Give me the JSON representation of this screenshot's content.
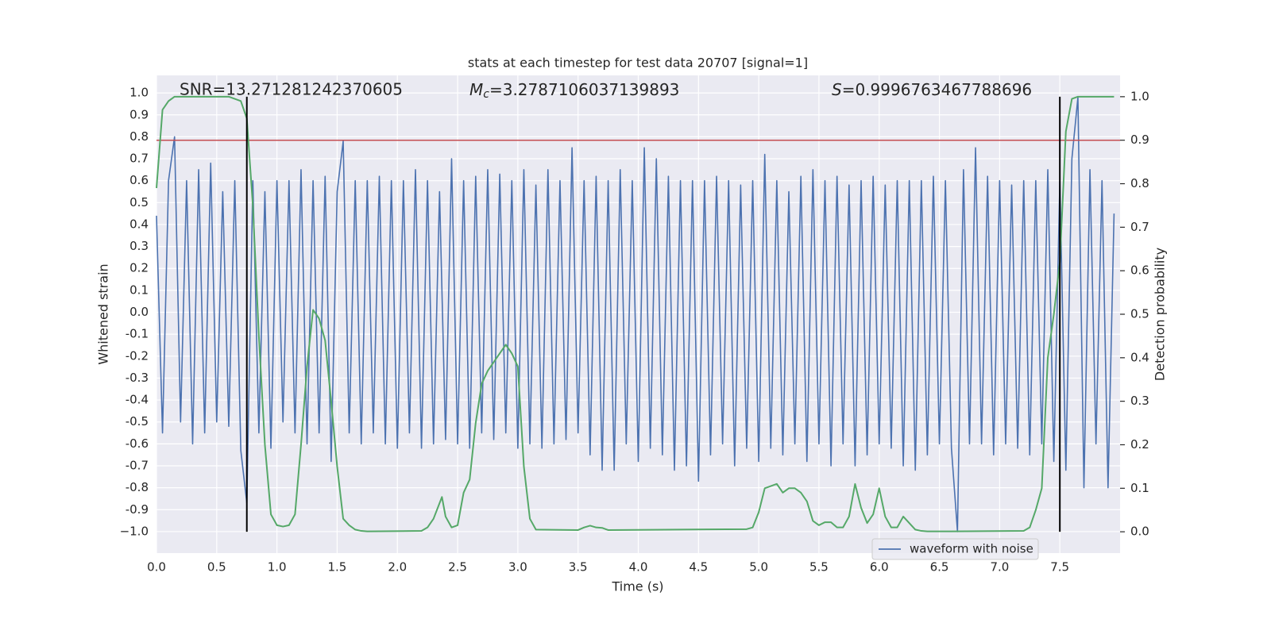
{
  "chart_data": {
    "type": "line",
    "title": "stats at each timestep for test data 20707 [signal=1]",
    "xlabel": "Time (s)",
    "ylabel": "Whitened strain",
    "y2label": "Detection probability",
    "annotations": [
      {
        "text": "SNR=13.271281242370605"
      },
      {
        "symbol": "M",
        "subscript": "c",
        "text": "=3.2787106037139893"
      },
      {
        "symbol": "S",
        "text": "=0.9996763467788696"
      }
    ],
    "xlim": [
      0,
      8.0
    ],
    "ylim": [
      -1.098,
      1.08
    ],
    "y2lim": [
      -0.049,
      1.049
    ],
    "xticks": [
      {
        "value": 0,
        "label": "0.0"
      },
      {
        "value": 0.5,
        "label": "0.5"
      },
      {
        "value": 1,
        "label": "1.0"
      },
      {
        "value": 1.5,
        "label": "1.5"
      },
      {
        "value": 2,
        "label": "2.0"
      },
      {
        "value": 2.5,
        "label": "2.5"
      },
      {
        "value": 3,
        "label": "3.0"
      },
      {
        "value": 3.5,
        "label": "3.5"
      },
      {
        "value": 4,
        "label": "4.0"
      },
      {
        "value": 4.5,
        "label": "4.5"
      },
      {
        "value": 5,
        "label": "5.0"
      },
      {
        "value": 5.5,
        "label": "5.5"
      },
      {
        "value": 6,
        "label": "6.0"
      },
      {
        "value": 6.5,
        "label": "6.5"
      },
      {
        "value": 7,
        "label": "7.0"
      },
      {
        "value": 7.5,
        "label": "7.5"
      }
    ],
    "yticks": [
      {
        "value": 1,
        "label": "1.0"
      },
      0.9,
      0.8,
      0.7,
      0.6,
      0.5,
      0.4,
      0.3,
      0.2,
      0.1,
      {
        "value": 0,
        "label": "0.0"
      },
      -0.1,
      -0.2,
      -0.3,
      -0.4,
      -0.5,
      -0.6,
      -0.7,
      -0.8,
      -0.9,
      {
        "value": -1,
        "label": "−1.0"
      }
    ],
    "y2ticks": [
      {
        "value": 0,
        "label": "0.0"
      },
      0.1,
      0.2,
      0.3,
      0.4,
      0.5,
      0.6,
      0.7,
      0.8,
      0.9,
      {
        "value": 1,
        "label": "1.0"
      }
    ],
    "grid": true,
    "legend": "lower right",
    "series": [
      {
        "name": "waveform with noise",
        "color": "#4c72b0",
        "x": [
          0,
          0.05,
          0.1,
          0.15,
          0.2,
          0.25,
          0.3,
          0.35,
          0.4,
          0.45,
          0.5,
          0.55,
          0.6,
          0.65,
          0.7,
          0.75,
          0.8,
          0.85,
          0.9,
          0.95,
          1.0,
          1.05,
          1.1,
          1.15,
          1.2,
          1.25,
          1.3,
          1.35,
          1.4,
          1.45,
          1.5,
          1.55,
          1.6,
          1.65,
          1.7,
          1.75,
          1.8,
          1.85,
          1.9,
          1.95,
          2.0,
          2.05,
          2.1,
          2.15,
          2.2,
          2.25,
          2.3,
          2.35,
          2.4,
          2.45,
          2.5,
          2.55,
          2.6,
          2.65,
          2.7,
          2.75,
          2.8,
          2.85,
          2.9,
          2.95,
          3.0,
          3.05,
          3.1,
          3.15,
          3.2,
          3.25,
          3.3,
          3.35,
          3.4,
          3.45,
          3.5,
          3.55,
          3.6,
          3.65,
          3.7,
          3.75,
          3.8,
          3.85,
          3.9,
          3.95,
          4.0,
          4.05,
          4.1,
          4.15,
          4.2,
          4.25,
          4.3,
          4.35,
          4.4,
          4.45,
          4.5,
          4.55,
          4.6,
          4.65,
          4.7,
          4.75,
          4.8,
          4.85,
          4.9,
          4.95,
          5.0,
          5.05,
          5.1,
          5.15,
          5.2,
          5.25,
          5.3,
          5.35,
          5.4,
          5.45,
          5.5,
          5.55,
          5.6,
          5.65,
          5.7,
          5.75,
          5.8,
          5.85,
          5.9,
          5.95,
          6.0,
          6.05,
          6.1,
          6.15,
          6.2,
          6.25,
          6.3,
          6.35,
          6.4,
          6.45,
          6.5,
          6.55,
          6.6,
          6.65,
          6.7,
          6.75,
          6.8,
          6.85,
          6.9,
          6.95,
          7.0,
          7.05,
          7.1,
          7.15,
          7.2,
          7.25,
          7.3,
          7.35,
          7.4,
          7.45,
          7.5,
          7.55,
          7.6,
          7.65,
          7.7,
          7.75,
          7.8,
          7.85,
          7.9,
          7.95
        ],
        "values": [
          0.44,
          -0.55,
          0.6,
          0.8,
          -0.5,
          0.6,
          -0.6,
          0.65,
          -0.55,
          0.68,
          -0.5,
          0.55,
          -0.52,
          0.6,
          -0.63,
          -0.87,
          0.6,
          -0.55,
          0.55,
          -0.62,
          0.6,
          -0.5,
          0.6,
          -0.55,
          0.65,
          -0.6,
          0.6,
          -0.55,
          0.62,
          -0.68,
          0.55,
          0.78,
          -0.55,
          0.6,
          -0.6,
          0.6,
          -0.55,
          0.62,
          -0.6,
          0.6,
          -0.62,
          0.6,
          -0.55,
          0.65,
          -0.62,
          0.6,
          -0.6,
          0.55,
          -0.58,
          0.7,
          -0.6,
          0.6,
          -0.62,
          0.62,
          -0.55,
          0.65,
          -0.58,
          0.63,
          -0.55,
          0.6,
          -0.62,
          0.65,
          -0.6,
          0.58,
          -0.62,
          0.65,
          -0.6,
          0.6,
          -0.58,
          0.75,
          -0.55,
          0.6,
          -0.65,
          0.62,
          -0.72,
          0.6,
          -0.72,
          0.65,
          -0.6,
          0.6,
          -0.68,
          0.75,
          -0.62,
          0.7,
          -0.65,
          0.62,
          -0.72,
          0.6,
          -0.7,
          0.6,
          -0.77,
          0.6,
          -0.65,
          0.62,
          -0.6,
          0.6,
          -0.7,
          0.58,
          -0.62,
          0.6,
          -0.68,
          0.72,
          -0.62,
          0.6,
          -0.65,
          0.55,
          -0.6,
          0.62,
          -0.68,
          0.65,
          -0.6,
          0.6,
          -0.7,
          0.62,
          -0.6,
          0.58,
          -0.7,
          0.6,
          -0.65,
          0.62,
          -0.6,
          0.58,
          -0.62,
          0.6,
          -0.7,
          0.6,
          -0.72,
          0.6,
          -0.65,
          0.62,
          -0.6,
          0.6,
          -0.62,
          -1.0,
          0.65,
          -0.6,
          0.75,
          -0.6,
          0.62,
          -0.65,
          0.6,
          -0.6,
          0.58,
          -0.62,
          0.6,
          -0.65,
          0.6,
          -0.6,
          0.65,
          -0.68,
          0.6,
          -0.72,
          0.7,
          0.98,
          -0.8,
          0.65,
          -0.6,
          0.6,
          -0.8,
          0.45
        ]
      },
      {
        "color": "#55a868",
        "axis": "y2",
        "x": [
          0,
          0.05,
          0.1,
          0.15,
          0.6,
          0.65,
          0.7,
          0.75,
          0.8,
          0.85,
          0.9,
          0.95,
          1.0,
          1.05,
          1.1,
          1.15,
          1.2,
          1.25,
          1.3,
          1.35,
          1.4,
          1.45,
          1.5,
          1.55,
          1.6,
          1.65,
          1.7,
          1.75,
          2.2,
          2.25,
          2.3,
          2.37,
          2.4,
          2.45,
          2.5,
          2.55,
          2.6,
          2.65,
          2.7,
          2.75,
          2.8,
          2.85,
          2.9,
          2.95,
          3.0,
          3.05,
          3.1,
          3.15,
          3.5,
          3.55,
          3.6,
          3.65,
          3.7,
          3.75,
          4.9,
          4.95,
          5.0,
          5.05,
          5.1,
          5.15,
          5.2,
          5.25,
          5.3,
          5.35,
          5.4,
          5.45,
          5.5,
          5.55,
          5.6,
          5.65,
          5.7,
          5.75,
          5.8,
          5.85,
          5.9,
          5.95,
          6.0,
          6.05,
          6.1,
          6.15,
          6.2,
          6.25,
          6.3,
          6.35,
          6.4,
          6.45,
          6.5,
          6.55,
          6.6,
          7.2,
          7.25,
          7.3,
          7.35,
          7.4,
          7.45,
          7.5,
          7.55,
          7.6,
          7.65,
          7.95
        ],
        "values": [
          0.79,
          0.97,
          0.99,
          1.0,
          1.0,
          0.995,
          0.99,
          0.95,
          0.75,
          0.45,
          0.2,
          0.04,
          0.015,
          0.012,
          0.015,
          0.04,
          0.2,
          0.38,
          0.51,
          0.49,
          0.44,
          0.3,
          0.15,
          0.03,
          0.015,
          0.005,
          0.002,
          0.001,
          0.002,
          0.01,
          0.03,
          0.08,
          0.035,
          0.01,
          0.015,
          0.09,
          0.12,
          0.25,
          0.34,
          0.37,
          0.39,
          0.41,
          0.43,
          0.41,
          0.38,
          0.15,
          0.03,
          0.005,
          0.004,
          0.01,
          0.014,
          0.01,
          0.009,
          0.004,
          0.006,
          0.01,
          0.045,
          0.1,
          0.105,
          0.11,
          0.09,
          0.1,
          0.1,
          0.09,
          0.07,
          0.025,
          0.015,
          0.022,
          0.022,
          0.01,
          0.01,
          0.035,
          0.11,
          0.055,
          0.02,
          0.04,
          0.1,
          0.035,
          0.01,
          0.01,
          0.035,
          0.02,
          0.005,
          0.002,
          0.001,
          0.001,
          0.001,
          0.001,
          0.001,
          0.002,
          0.01,
          0.05,
          0.1,
          0.4,
          0.5,
          0.62,
          0.92,
          0.995,
          1.0,
          1.0
        ]
      }
    ],
    "threshold": {
      "value": 0.9,
      "axis": "y2",
      "color": "#c44e52"
    },
    "vlines": {
      "x": [
        0.75,
        7.5
      ],
      "y2range": [
        0,
        1
      ],
      "color": "#000000"
    }
  }
}
